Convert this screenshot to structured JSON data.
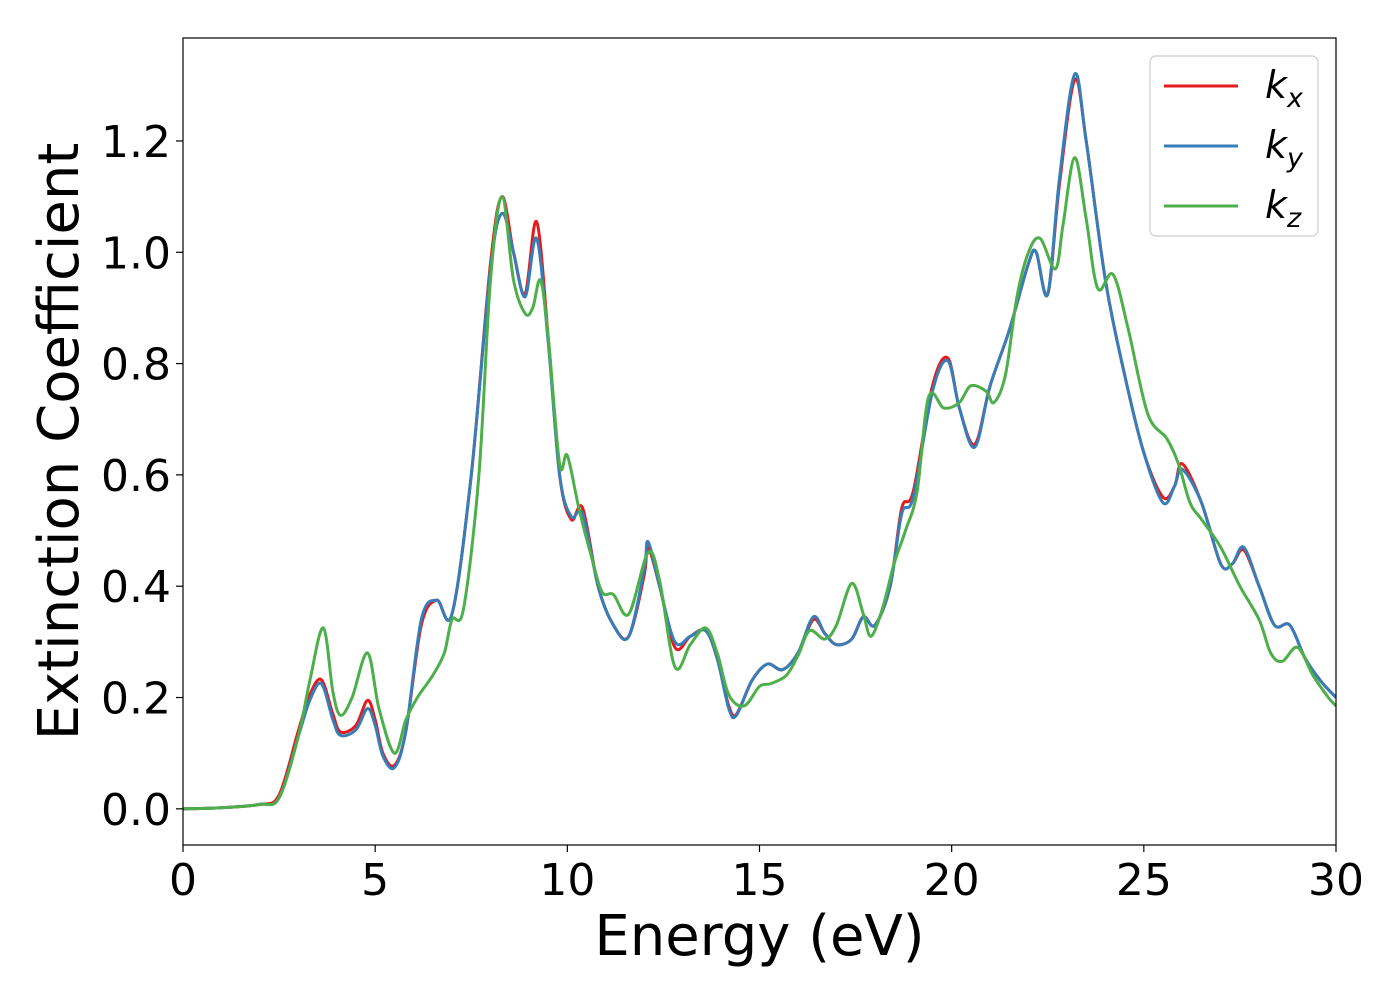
{
  "chart_data": {
    "type": "line",
    "xlabel": "Energy (eV)",
    "ylabel": "Extinction Coefficient",
    "xlim": [
      0,
      30
    ],
    "ylim": [
      -0.065,
      1.385
    ],
    "xticks": [
      "0",
      "5",
      "10",
      "15",
      "20",
      "25",
      "30"
    ],
    "yticks": [
      "0.0",
      "0.2",
      "0.4",
      "0.6",
      "0.8",
      "1.0",
      "1.2"
    ],
    "grid": false,
    "legend_position": "top-right",
    "series": [
      {
        "name": "k",
        "sub": "x",
        "color": "#e41a1c",
        "points": [
          [
            0,
            0
          ],
          [
            1,
            0.002
          ],
          [
            2,
            0.008
          ],
          [
            2.5,
            0.025
          ],
          [
            3,
            0.14
          ],
          [
            3.3,
            0.205
          ],
          [
            3.6,
            0.232
          ],
          [
            3.9,
            0.17
          ],
          [
            4.1,
            0.138
          ],
          [
            4.5,
            0.15
          ],
          [
            4.8,
            0.195
          ],
          [
            5.0,
            0.16
          ],
          [
            5.2,
            0.1
          ],
          [
            5.5,
            0.078
          ],
          [
            5.8,
            0.14
          ],
          [
            6.2,
            0.33
          ],
          [
            6.6,
            0.375
          ],
          [
            7.0,
            0.35
          ],
          [
            7.5,
            0.6
          ],
          [
            8.0,
            0.98
          ],
          [
            8.3,
            1.1
          ],
          [
            8.6,
            1.0
          ],
          [
            8.9,
            0.925
          ],
          [
            9.2,
            1.055
          ],
          [
            9.5,
            0.85
          ],
          [
            9.8,
            0.6
          ],
          [
            10.1,
            0.52
          ],
          [
            10.4,
            0.54
          ],
          [
            10.8,
            0.4
          ],
          [
            11.2,
            0.33
          ],
          [
            11.6,
            0.31
          ],
          [
            12.0,
            0.42
          ],
          [
            12.1,
            0.47
          ],
          [
            12.4,
            0.4
          ],
          [
            12.8,
            0.29
          ],
          [
            13.2,
            0.31
          ],
          [
            13.6,
            0.32
          ],
          [
            13.9,
            0.27
          ],
          [
            14.2,
            0.185
          ],
          [
            14.4,
            0.17
          ],
          [
            14.8,
            0.23
          ],
          [
            15.2,
            0.26
          ],
          [
            15.6,
            0.25
          ],
          [
            16.0,
            0.28
          ],
          [
            16.4,
            0.34
          ],
          [
            16.7,
            0.315
          ],
          [
            17.0,
            0.295
          ],
          [
            17.4,
            0.305
          ],
          [
            17.7,
            0.345
          ],
          [
            18.0,
            0.33
          ],
          [
            18.4,
            0.4
          ],
          [
            18.7,
            0.54
          ],
          [
            19.0,
            0.57
          ],
          [
            19.5,
            0.76
          ],
          [
            19.9,
            0.81
          ],
          [
            20.2,
            0.72
          ],
          [
            20.6,
            0.655
          ],
          [
            21.0,
            0.76
          ],
          [
            21.5,
            0.86
          ],
          [
            22.0,
            0.98
          ],
          [
            22.2,
            1.0
          ],
          [
            22.5,
            0.925
          ],
          [
            22.8,
            1.12
          ],
          [
            23.2,
            1.31
          ],
          [
            23.5,
            1.2
          ],
          [
            24.0,
            0.95
          ],
          [
            24.5,
            0.78
          ],
          [
            25.0,
            0.64
          ],
          [
            25.5,
            0.56
          ],
          [
            25.8,
            0.58
          ],
          [
            26.0,
            0.62
          ],
          [
            26.5,
            0.55
          ],
          [
            27.0,
            0.44
          ],
          [
            27.3,
            0.44
          ],
          [
            27.6,
            0.465
          ],
          [
            28.0,
            0.4
          ],
          [
            28.4,
            0.33
          ],
          [
            28.8,
            0.33
          ],
          [
            29.2,
            0.27
          ],
          [
            29.6,
            0.23
          ],
          [
            30.0,
            0.2
          ]
        ]
      },
      {
        "name": "k",
        "sub": "y",
        "color": "#377eb8",
        "points": [
          [
            0,
            0
          ],
          [
            1,
            0.002
          ],
          [
            2,
            0.008
          ],
          [
            2.5,
            0.02
          ],
          [
            3,
            0.13
          ],
          [
            3.3,
            0.195
          ],
          [
            3.6,
            0.225
          ],
          [
            3.9,
            0.16
          ],
          [
            4.1,
            0.132
          ],
          [
            4.5,
            0.142
          ],
          [
            4.8,
            0.18
          ],
          [
            5.0,
            0.15
          ],
          [
            5.2,
            0.095
          ],
          [
            5.5,
            0.074
          ],
          [
            5.8,
            0.14
          ],
          [
            6.2,
            0.34
          ],
          [
            6.6,
            0.375
          ],
          [
            7.0,
            0.35
          ],
          [
            7.5,
            0.6
          ],
          [
            8.0,
            0.97
          ],
          [
            8.3,
            1.07
          ],
          [
            8.6,
            1.0
          ],
          [
            8.9,
            0.92
          ],
          [
            9.2,
            1.025
          ],
          [
            9.5,
            0.84
          ],
          [
            9.8,
            0.6
          ],
          [
            10.1,
            0.525
          ],
          [
            10.4,
            0.53
          ],
          [
            10.8,
            0.4
          ],
          [
            11.2,
            0.33
          ],
          [
            11.6,
            0.31
          ],
          [
            12.0,
            0.43
          ],
          [
            12.1,
            0.48
          ],
          [
            12.4,
            0.4
          ],
          [
            12.8,
            0.3
          ],
          [
            13.2,
            0.31
          ],
          [
            13.6,
            0.32
          ],
          [
            13.9,
            0.27
          ],
          [
            14.2,
            0.18
          ],
          [
            14.4,
            0.168
          ],
          [
            14.8,
            0.23
          ],
          [
            15.2,
            0.26
          ],
          [
            15.6,
            0.25
          ],
          [
            16.0,
            0.28
          ],
          [
            16.4,
            0.345
          ],
          [
            16.7,
            0.315
          ],
          [
            17.0,
            0.295
          ],
          [
            17.4,
            0.305
          ],
          [
            17.7,
            0.345
          ],
          [
            18.0,
            0.33
          ],
          [
            18.4,
            0.4
          ],
          [
            18.7,
            0.53
          ],
          [
            19.0,
            0.56
          ],
          [
            19.5,
            0.75
          ],
          [
            19.9,
            0.805
          ],
          [
            20.2,
            0.72
          ],
          [
            20.6,
            0.65
          ],
          [
            21.0,
            0.76
          ],
          [
            21.5,
            0.86
          ],
          [
            22.0,
            0.98
          ],
          [
            22.2,
            1.0
          ],
          [
            22.5,
            0.925
          ],
          [
            22.8,
            1.13
          ],
          [
            23.2,
            1.32
          ],
          [
            23.5,
            1.2
          ],
          [
            24.0,
            0.95
          ],
          [
            24.5,
            0.78
          ],
          [
            25.0,
            0.64
          ],
          [
            25.5,
            0.55
          ],
          [
            25.8,
            0.58
          ],
          [
            26.0,
            0.61
          ],
          [
            26.5,
            0.55
          ],
          [
            27.0,
            0.44
          ],
          [
            27.3,
            0.44
          ],
          [
            27.6,
            0.47
          ],
          [
            28.0,
            0.4
          ],
          [
            28.4,
            0.33
          ],
          [
            28.8,
            0.33
          ],
          [
            29.2,
            0.27
          ],
          [
            29.6,
            0.23
          ],
          [
            30.0,
            0.2
          ]
        ]
      },
      {
        "name": "k",
        "sub": "z",
        "color": "#4daf4a",
        "points": [
          [
            0,
            0
          ],
          [
            1,
            0.002
          ],
          [
            2,
            0.008
          ],
          [
            2.5,
            0.02
          ],
          [
            3,
            0.13
          ],
          [
            3.3,
            0.23
          ],
          [
            3.65,
            0.325
          ],
          [
            3.9,
            0.21
          ],
          [
            4.1,
            0.168
          ],
          [
            4.4,
            0.2
          ],
          [
            4.8,
            0.28
          ],
          [
            5.1,
            0.18
          ],
          [
            5.5,
            0.1
          ],
          [
            5.8,
            0.16
          ],
          [
            6.1,
            0.2
          ],
          [
            6.5,
            0.24
          ],
          [
            6.8,
            0.28
          ],
          [
            7.0,
            0.34
          ],
          [
            7.3,
            0.36
          ],
          [
            7.7,
            0.6
          ],
          [
            8.0,
            0.95
          ],
          [
            8.3,
            1.1
          ],
          [
            8.6,
            0.95
          ],
          [
            8.9,
            0.89
          ],
          [
            9.1,
            0.9
          ],
          [
            9.3,
            0.95
          ],
          [
            9.5,
            0.85
          ],
          [
            9.8,
            0.62
          ],
          [
            10.0,
            0.635
          ],
          [
            10.3,
            0.54
          ],
          [
            10.6,
            0.46
          ],
          [
            10.9,
            0.39
          ],
          [
            11.2,
            0.385
          ],
          [
            11.6,
            0.35
          ],
          [
            12.1,
            0.46
          ],
          [
            12.4,
            0.41
          ],
          [
            12.8,
            0.255
          ],
          [
            13.2,
            0.295
          ],
          [
            13.6,
            0.325
          ],
          [
            13.9,
            0.28
          ],
          [
            14.2,
            0.205
          ],
          [
            14.6,
            0.185
          ],
          [
            15.0,
            0.22
          ],
          [
            15.3,
            0.225
          ],
          [
            15.7,
            0.24
          ],
          [
            16.0,
            0.275
          ],
          [
            16.3,
            0.32
          ],
          [
            16.7,
            0.305
          ],
          [
            17.0,
            0.33
          ],
          [
            17.4,
            0.405
          ],
          [
            17.7,
            0.35
          ],
          [
            17.9,
            0.31
          ],
          [
            18.2,
            0.36
          ],
          [
            18.5,
            0.44
          ],
          [
            18.8,
            0.5
          ],
          [
            19.1,
            0.57
          ],
          [
            19.4,
            0.74
          ],
          [
            19.8,
            0.72
          ],
          [
            20.2,
            0.73
          ],
          [
            20.5,
            0.76
          ],
          [
            20.9,
            0.75
          ],
          [
            21.1,
            0.73
          ],
          [
            21.4,
            0.78
          ],
          [
            21.7,
            0.92
          ],
          [
            22.0,
            1.0
          ],
          [
            22.3,
            1.025
          ],
          [
            22.7,
            0.97
          ],
          [
            22.9,
            1.05
          ],
          [
            23.2,
            1.17
          ],
          [
            23.5,
            1.06
          ],
          [
            23.8,
            0.935
          ],
          [
            24.2,
            0.96
          ],
          [
            24.6,
            0.86
          ],
          [
            25.1,
            0.71
          ],
          [
            25.6,
            0.665
          ],
          [
            25.9,
            0.62
          ],
          [
            26.2,
            0.55
          ],
          [
            26.5,
            0.52
          ],
          [
            27.0,
            0.47
          ],
          [
            27.5,
            0.4
          ],
          [
            28.0,
            0.34
          ],
          [
            28.3,
            0.28
          ],
          [
            28.6,
            0.265
          ],
          [
            29.0,
            0.29
          ],
          [
            29.4,
            0.24
          ],
          [
            29.8,
            0.2
          ],
          [
            30.0,
            0.185
          ]
        ]
      }
    ]
  }
}
